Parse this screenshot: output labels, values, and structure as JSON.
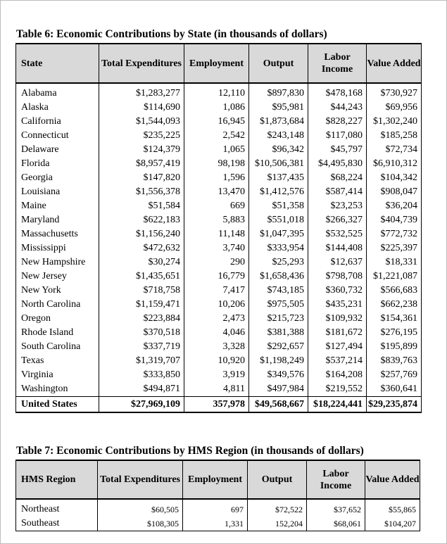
{
  "table6": {
    "caption": "Table 6:  Economic Contributions by State (in thousands of dollars)",
    "headers": [
      "State",
      "Total Expenditures",
      "Employment",
      "Output",
      "Labor Income",
      "Value Added"
    ],
    "rows": [
      [
        "Alabama",
        "$1,283,277",
        "12,110",
        "$897,830",
        "$478,168",
        "$730,927"
      ],
      [
        "Alaska",
        "$114,690",
        "1,086",
        "$95,981",
        "$44,243",
        "$69,956"
      ],
      [
        "California",
        "$1,544,093",
        "16,945",
        "$1,873,684",
        "$828,227",
        "$1,302,240"
      ],
      [
        "Connecticut",
        "$235,225",
        "2,542",
        "$243,148",
        "$117,080",
        "$185,258"
      ],
      [
        "Delaware",
        "$124,379",
        "1,065",
        "$96,342",
        "$45,797",
        "$72,734"
      ],
      [
        "Florida",
        "$8,957,419",
        "98,198",
        "$10,506,381",
        "$4,495,830",
        "$6,910,312"
      ],
      [
        "Georgia",
        "$147,820",
        "1,596",
        "$137,435",
        "$68,224",
        "$104,342"
      ],
      [
        "Louisiana",
        "$1,556,378",
        "13,470",
        "$1,412,576",
        "$587,414",
        "$908,047"
      ],
      [
        "Maine",
        "$51,584",
        "669",
        "$51,358",
        "$23,253",
        "$36,204"
      ],
      [
        "Maryland",
        "$622,183",
        "5,883",
        "$551,018",
        "$266,327",
        "$404,739"
      ],
      [
        "Massachusetts",
        "$1,156,240",
        "11,148",
        "$1,047,395",
        "$532,525",
        "$772,732"
      ],
      [
        "Mississippi",
        "$472,632",
        "3,740",
        "$333,954",
        "$144,408",
        "$225,397"
      ],
      [
        "New Hampshire",
        "$30,274",
        "290",
        "$25,293",
        "$12,637",
        "$18,331"
      ],
      [
        "New Jersey",
        "$1,435,651",
        "16,779",
        "$1,658,436",
        "$798,708",
        "$1,221,087"
      ],
      [
        "New York",
        "$718,758",
        "7,417",
        "$743,185",
        "$360,732",
        "$566,683"
      ],
      [
        "North Carolina",
        "$1,159,471",
        "10,206",
        "$975,505",
        "$435,231",
        "$662,238"
      ],
      [
        "Oregon",
        "$223,884",
        "2,473",
        "$215,723",
        "$109,932",
        "$154,361"
      ],
      [
        "Rhode Island",
        "$370,518",
        "4,046",
        "$381,388",
        "$181,672",
        "$276,195"
      ],
      [
        "South Carolina",
        "$337,719",
        "3,328",
        "$292,657",
        "$127,494",
        "$195,899"
      ],
      [
        "Texas",
        "$1,319,707",
        "10,920",
        "$1,198,249",
        "$537,214",
        "$839,763"
      ],
      [
        "Virginia",
        "$333,850",
        "3,919",
        "$349,576",
        "$164,208",
        "$257,769"
      ],
      [
        "Washington",
        "$494,871",
        "4,811",
        "$497,984",
        "$219,552",
        "$360,641"
      ]
    ],
    "total": [
      "United States",
      "$27,969,109",
      "357,978",
      "$49,568,667",
      "$18,224,441",
      "$29,235,874"
    ]
  },
  "table7": {
    "caption": "Table 7:  Economic Contributions by HMS Region (in thousands of dollars)",
    "headers": [
      "HMS Region",
      "Total Expenditures",
      "Employment",
      "Output",
      "Labor Income",
      "Value Added"
    ],
    "rows": [
      [
        "Northeast",
        "$60,505",
        "697",
        "$72,522",
        "$37,652",
        "$55,865"
      ],
      [
        "Southeast",
        "$108,305",
        "1,331",
        "152,204",
        "$68,061",
        "$104,207"
      ]
    ]
  }
}
